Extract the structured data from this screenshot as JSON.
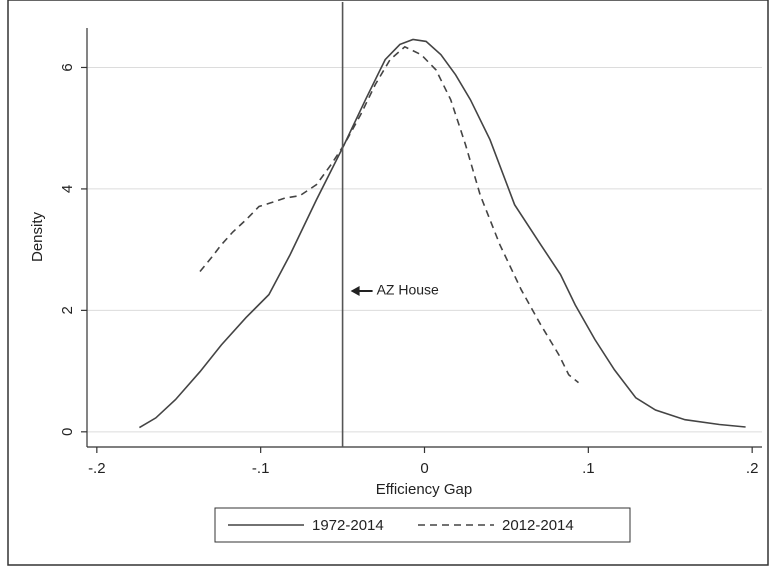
{
  "chart_data": {
    "type": "line",
    "xlabel": "Efficiency Gap",
    "ylabel": "Density",
    "xlim": [
      -0.206,
      0.206
    ],
    "ylim": [
      -0.25,
      6.65
    ],
    "xticks": [
      {
        "value": -0.2,
        "label": "-.2"
      },
      {
        "value": -0.1,
        "label": "-.1"
      },
      0,
      {
        "value": 0.1,
        "label": ".1"
      },
      {
        "value": 0.2,
        "label": ".2"
      }
    ],
    "yticks": [
      0,
      2,
      4,
      6
    ],
    "grid": true,
    "vline": -0.05,
    "annotation": "AZ House",
    "series": [
      {
        "name": "1972-2014",
        "color": "#444444",
        "dash": "solid",
        "x": [
          -0.174,
          -0.164,
          -0.152,
          -0.137,
          -0.124,
          -0.109,
          -0.095,
          -0.082,
          -0.066,
          -0.049,
          -0.036,
          -0.024,
          -0.015,
          -0.007,
          0.001,
          0.01,
          0.019,
          0.028,
          0.04,
          0.055,
          0.071,
          0.083,
          0.092,
          0.104,
          0.116,
          0.129,
          0.141,
          0.159,
          0.18,
          0.196
        ],
        "values": [
          0.07,
          0.23,
          0.53,
          0.99,
          1.43,
          1.88,
          2.26,
          2.92,
          3.82,
          4.73,
          5.47,
          6.13,
          6.38,
          6.46,
          6.43,
          6.21,
          5.88,
          5.47,
          4.81,
          3.74,
          3.08,
          2.59,
          2.09,
          1.52,
          1.02,
          0.56,
          0.36,
          0.2,
          0.12,
          0.08
        ]
      },
      {
        "name": "2012-2014",
        "color": "#444444",
        "dash": "dashed",
        "x": [
          -0.137,
          -0.13,
          -0.124,
          -0.117,
          -0.109,
          -0.101,
          -0.094,
          -0.085,
          -0.076,
          -0.066,
          -0.057,
          -0.049,
          -0.039,
          -0.03,
          -0.021,
          -0.012,
          -0.002,
          0.007,
          0.016,
          0.025,
          0.034,
          0.046,
          0.059,
          0.071,
          0.082,
          0.088,
          0.094
        ],
        "values": [
          2.64,
          2.87,
          3.08,
          3.29,
          3.49,
          3.71,
          3.77,
          3.85,
          3.89,
          4.07,
          4.4,
          4.73,
          5.22,
          5.72,
          6.13,
          6.34,
          6.21,
          5.96,
          5.47,
          4.73,
          3.9,
          3.08,
          2.34,
          1.76,
          1.27,
          0.94,
          0.81
        ]
      }
    ]
  }
}
